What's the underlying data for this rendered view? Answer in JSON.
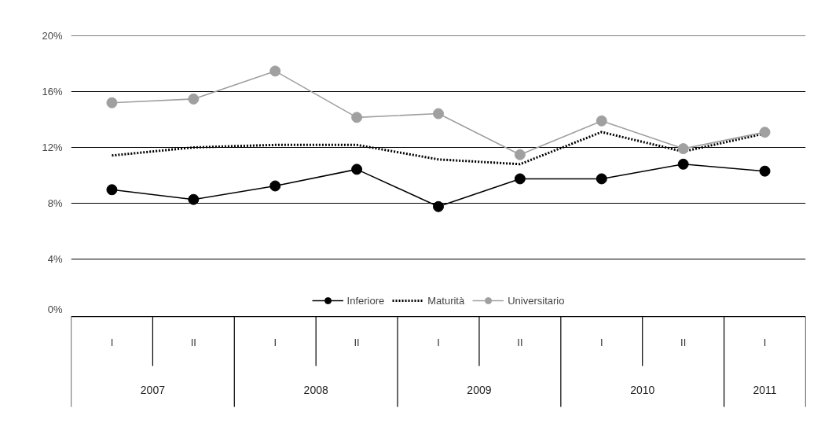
{
  "chart_data": {
    "type": "line",
    "categories": [
      "I",
      "II",
      "I",
      "II",
      "I",
      "II",
      "I",
      "II",
      "I"
    ],
    "annotations": [
      "2007",
      "2008",
      "2009",
      "2010",
      "2011"
    ],
    "ylim": [
      0,
      20
    ],
    "yticks": [
      {
        "value": 0,
        "label": "0%"
      },
      {
        "value": 4,
        "label": "4%"
      },
      {
        "value": 8,
        "label": "8%"
      },
      {
        "value": 12,
        "label": "12%"
      },
      {
        "value": 16,
        "label": "16%"
      },
      {
        "value": 20,
        "label": "20%"
      }
    ],
    "grid": "y",
    "legend": "bottom",
    "series": [
      {
        "name": "Inferiore",
        "color": "#000000",
        "marker": "circle",
        "line_style": "solid",
        "values": [
          8.97,
          8.27,
          9.24,
          10.43,
          7.76,
          9.75,
          9.75,
          10.8,
          10.3
        ]
      },
      {
        "name": "Maturità",
        "color": "#000000",
        "marker": "none",
        "line_style": "dotted",
        "values": [
          11.42,
          12.0,
          12.18,
          12.18,
          11.14,
          10.8,
          13.1,
          11.7,
          13.0
        ]
      },
      {
        "name": "Universitario",
        "color": "#a0a0a0",
        "marker": "circle",
        "line_style": "solid",
        "values": [
          15.2,
          15.47,
          17.47,
          14.15,
          14.42,
          11.48,
          13.9,
          11.91,
          13.09
        ]
      }
    ]
  }
}
